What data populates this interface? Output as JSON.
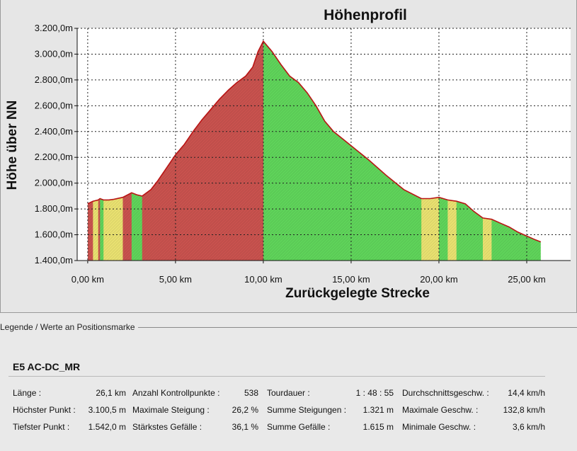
{
  "chart_data": {
    "type": "area",
    "title": "Höhenprofil",
    "xlabel": "Zurückgelegte Strecke",
    "ylabel": "Höhe über NN",
    "xlim": [
      -0.6,
      27.5
    ],
    "ylim": [
      1400,
      3200
    ],
    "x_ticks": [
      0,
      5,
      10,
      15,
      20,
      25
    ],
    "x_tick_labels": [
      "0,00 km",
      "5,00 km",
      "10,00 km",
      "15,00 km",
      "20,00 km",
      "25,00 km"
    ],
    "y_ticks": [
      1400,
      1600,
      1800,
      2000,
      2200,
      2400,
      2600,
      2800,
      3000,
      3200
    ],
    "y_tick_labels": [
      "1.400,0m",
      "1.600,0m",
      "1.800,0m",
      "2.000,0m",
      "2.200,0m",
      "2.400,0m",
      "2.600,0m",
      "2.800,0m",
      "3.000,0m",
      "3.200,0m"
    ],
    "grid": true,
    "series": [
      {
        "x": [
          0,
          0.3,
          0.6,
          0.7,
          0.9,
          1.2,
          1.5,
          2.0,
          2.5,
          2.8,
          3.1,
          3.6,
          4.0,
          4.5,
          5.0,
          5.5,
          6.0,
          6.5,
          7.0,
          7.5,
          8.0,
          8.5,
          9.0,
          9.4,
          9.7,
          10.0,
          10.5,
          11.0,
          11.5,
          12.0,
          12.5,
          13.0,
          13.5,
          14.0,
          15.0,
          16.0,
          17.0,
          18.0,
          19.0,
          19.5,
          20.0,
          20.5,
          21.0,
          21.5,
          22.0,
          22.5,
          23.0,
          23.5,
          24.0,
          24.5,
          25.0,
          25.5,
          25.8
        ],
        "y": [
          1840,
          1860,
          1870,
          1880,
          1870,
          1870,
          1875,
          1890,
          1925,
          1910,
          1900,
          1950,
          2020,
          2120,
          2220,
          2300,
          2400,
          2490,
          2570,
          2650,
          2720,
          2780,
          2830,
          2900,
          3020,
          3100,
          3020,
          2920,
          2830,
          2780,
          2700,
          2600,
          2480,
          2400,
          2290,
          2180,
          2060,
          1950,
          1880,
          1880,
          1890,
          1870,
          1860,
          1840,
          1780,
          1730,
          1720,
          1690,
          1660,
          1620,
          1590,
          1560,
          1545
        ]
      }
    ],
    "fill_colors": {
      "ascent": "#c8524e",
      "descent": "#5fd35a",
      "flat": "#e8e070",
      "line": "#b81414"
    }
  },
  "legend": {
    "title": "Legende / Werte an Positionsmarke",
    "route_name": "E5 AC-DC_MR",
    "rows": [
      [
        {
          "label": "Länge :",
          "value": "26,1 km"
        },
        {
          "label": "Anzahl Kontrollpunkte :",
          "value": "538"
        },
        {
          "label": "Tourdauer :",
          "value": "1 : 48 : 55"
        },
        {
          "label": "Durchschnittsgeschw. :",
          "value": "14,4 km/h"
        }
      ],
      [
        {
          "label": "Höchster Punkt :",
          "value": "3.100,5 m"
        },
        {
          "label": "Maximale Steigung :",
          "value": "26,2 %"
        },
        {
          "label": "Summe Steigungen :",
          "value": "1.321 m"
        },
        {
          "label": "Maximale Geschw. :",
          "value": "132,8 km/h"
        }
      ],
      [
        {
          "label": "Tiefster Punkt :",
          "value": "1.542,0 m"
        },
        {
          "label": "Stärkstes Gefälle :",
          "value": "36,1 %"
        },
        {
          "label": "Summe Gefälle :",
          "value": "1.615 m"
        },
        {
          "label": "Minimale Geschw. :",
          "value": "3,6 km/h"
        }
      ]
    ]
  }
}
